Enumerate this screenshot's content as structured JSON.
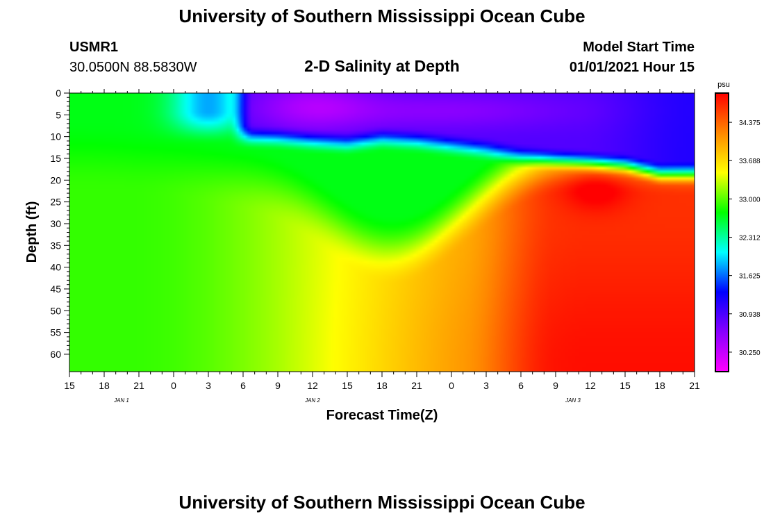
{
  "header": {
    "title": "University of Southern Mississippi Ocean Cube",
    "station_id": "USMR1",
    "station_coords": "30.0500N 88.5830W",
    "subtitle": "2-D Salinity at Depth",
    "model_start_label": "Model Start Time",
    "model_start_value": "01/01/2021 Hour 15"
  },
  "footer": {
    "title": "University of Southern Mississippi Ocean Cube"
  },
  "chart_data": {
    "type": "heatmap",
    "title": "2-D Salinity at Depth",
    "xlabel": "Forecast Time(Z)",
    "ylabel": "Depth (ft)",
    "x_ticks": [
      "15",
      "18",
      "21",
      "0",
      "3",
      "6",
      "9",
      "12",
      "15",
      "18",
      "21",
      "0",
      "3",
      "6",
      "9",
      "12",
      "15",
      "18",
      "21"
    ],
    "day_labels": [
      {
        "label": "JAN 1",
        "x_index": 1.5
      },
      {
        "label": "JAN 2",
        "x_index": 7
      },
      {
        "label": "JAN 3",
        "x_index": 14.5
      }
    ],
    "y_ticks": [
      "0",
      "5",
      "10",
      "15",
      "20",
      "25",
      "30",
      "35",
      "40",
      "45",
      "50",
      "55",
      "60"
    ],
    "ylim": [
      0,
      64
    ],
    "xlim_hours": [
      0,
      54
    ],
    "colorbar": {
      "unit": "psu",
      "labels": [
        "34.375",
        "33.688",
        "33.000",
        "32.312",
        "31.625",
        "30.938",
        "30.250"
      ],
      "range": [
        29.9,
        34.9
      ],
      "colors": [
        "#ff00ff",
        "#8800ff",
        "#0000ff",
        "#00ffff",
        "#00ff00",
        "#ffff00",
        "#ff8800",
        "#ff0000"
      ]
    },
    "surface_layer": {
      "fresh_start_hour": 14.7,
      "fresh_end_hour": 54,
      "bottom_depth_ft": [
        [
          15,
          10.5
        ],
        [
          18,
          10.8
        ],
        [
          21,
          11.5
        ],
        [
          24,
          12
        ],
        [
          27,
          11
        ],
        [
          30,
          11.5
        ],
        [
          33,
          12.5
        ],
        [
          36,
          13.5
        ],
        [
          39,
          15
        ],
        [
          42,
          15.8
        ],
        [
          45,
          16.3
        ],
        [
          48,
          17
        ],
        [
          51,
          19
        ],
        [
          54,
          19
        ]
      ]
    }
  }
}
